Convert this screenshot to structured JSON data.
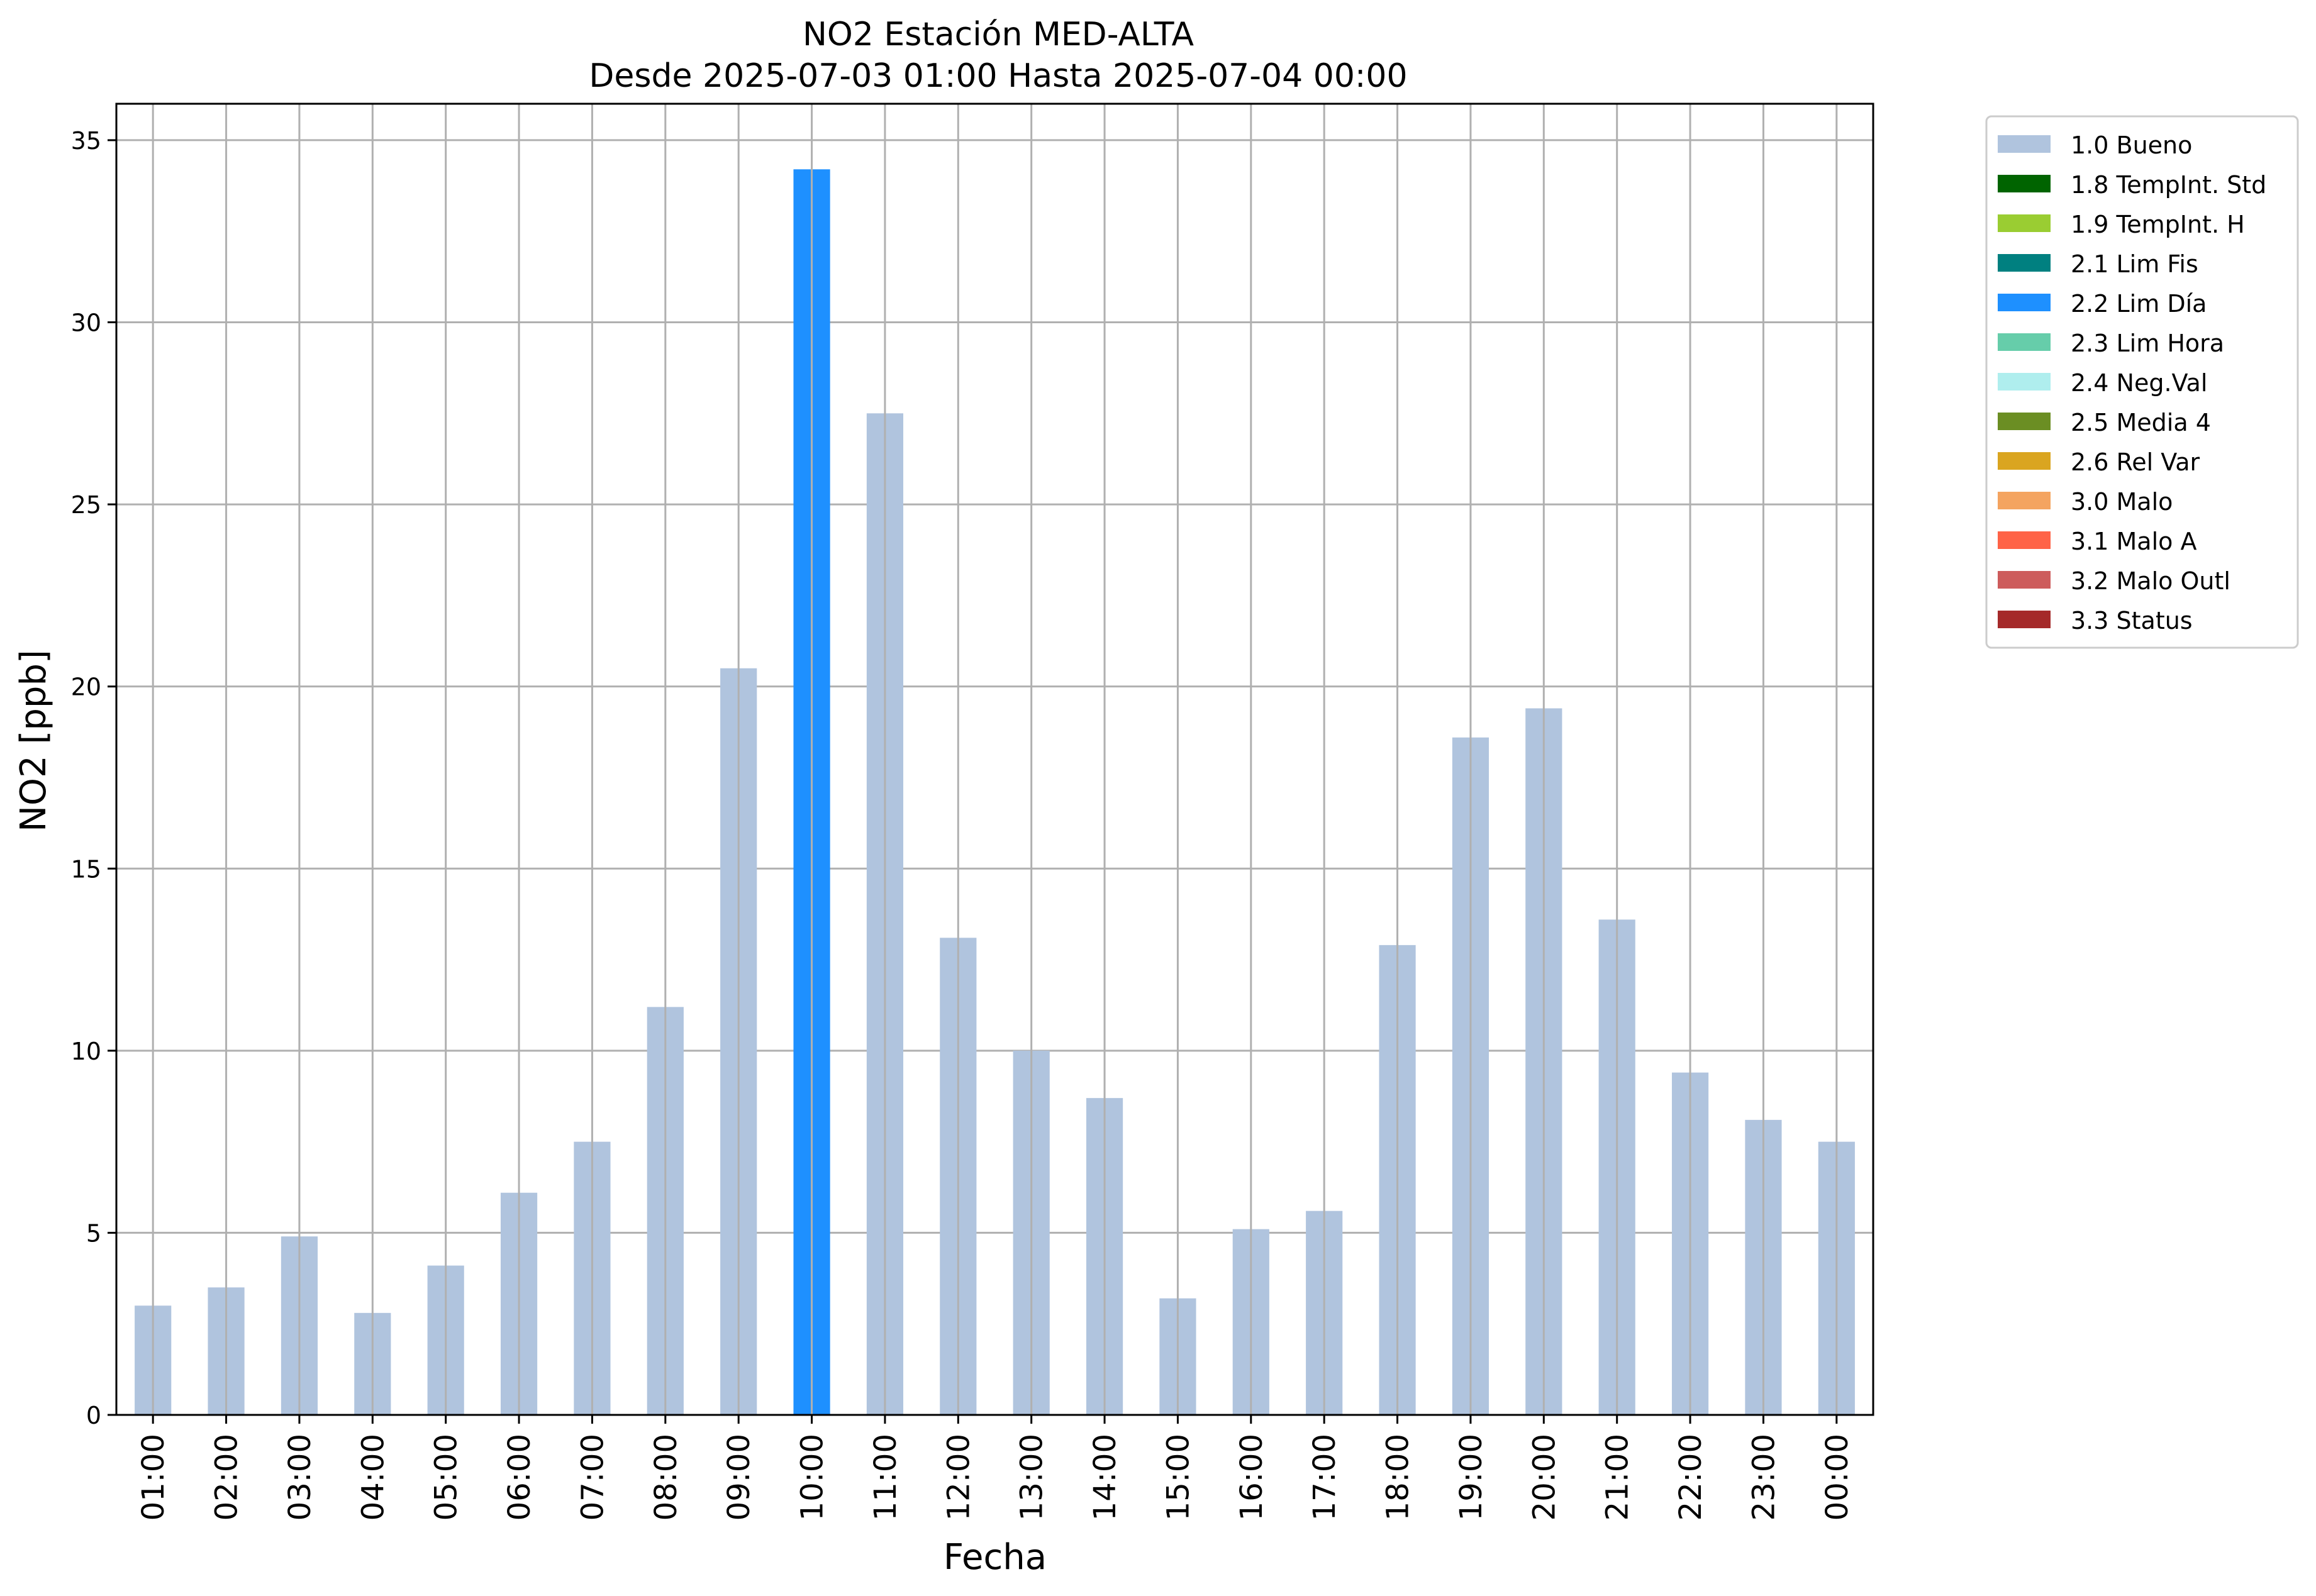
{
  "chart_data": {
    "type": "bar",
    "title": "NO2 Estación MED-ALTA",
    "subtitle": "Desde 2025-07-03 01:00 Hasta 2025-07-04 00:00",
    "xlabel": "Fecha",
    "ylabel": "NO2 [ppb]",
    "ylim": [
      0,
      36
    ],
    "yticks": [
      0,
      5,
      10,
      15,
      20,
      25,
      30,
      35
    ],
    "grid": true,
    "legend_position": "outside-right-top",
    "categories": [
      "01:00",
      "02:00",
      "03:00",
      "04:00",
      "05:00",
      "06:00",
      "07:00",
      "08:00",
      "09:00",
      "10:00",
      "11:00",
      "12:00",
      "13:00",
      "14:00",
      "15:00",
      "16:00",
      "17:00",
      "18:00",
      "19:00",
      "20:00",
      "21:00",
      "22:00",
      "23:00",
      "00:00"
    ],
    "values": [
      3.0,
      3.5,
      4.9,
      2.8,
      4.1,
      6.1,
      7.5,
      11.2,
      20.5,
      34.2,
      27.5,
      13.1,
      10.0,
      8.7,
      3.2,
      5.1,
      5.6,
      12.9,
      18.6,
      19.4,
      13.6,
      9.4,
      8.1,
      7.5
    ],
    "flags": [
      "1.0 Bueno",
      "1.0 Bueno",
      "1.0 Bueno",
      "1.0 Bueno",
      "1.0 Bueno",
      "1.0 Bueno",
      "1.0 Bueno",
      "1.0 Bueno",
      "1.0 Bueno",
      "2.2 Lim Día",
      "1.0 Bueno",
      "1.0 Bueno",
      "1.0 Bueno",
      "1.0 Bueno",
      "1.0 Bueno",
      "1.0 Bueno",
      "1.0 Bueno",
      "1.0 Bueno",
      "1.0 Bueno",
      "1.0 Bueno",
      "1.0 Bueno",
      "1.0 Bueno",
      "1.0 Bueno",
      "1.0 Bueno"
    ],
    "legend": [
      {
        "label": "1.0 Bueno",
        "color": "#b0c4de"
      },
      {
        "label": "1.8 TempInt. Std",
        "color": "#006400"
      },
      {
        "label": "1.9 TempInt. H",
        "color": "#9acd32"
      },
      {
        "label": "2.1 Lim Fis",
        "color": "#008080"
      },
      {
        "label": "2.2 Lim Día",
        "color": "#1e90ff"
      },
      {
        "label": "2.3 Lim Hora",
        "color": "#66cdaa"
      },
      {
        "label": "2.4 Neg.Val",
        "color": "#afeeee"
      },
      {
        "label": "2.5 Media 4",
        "color": "#6b8e23"
      },
      {
        "label": "2.6 Rel Var",
        "color": "#daa520"
      },
      {
        "label": "3.0 Malo",
        "color": "#f4a460"
      },
      {
        "label": "3.1 Malo A",
        "color": "#ff6347"
      },
      {
        "label": "3.2 Malo Outl",
        "color": "#cd5c5c"
      },
      {
        "label": "3.3 Status",
        "color": "#a52a2a"
      }
    ]
  }
}
